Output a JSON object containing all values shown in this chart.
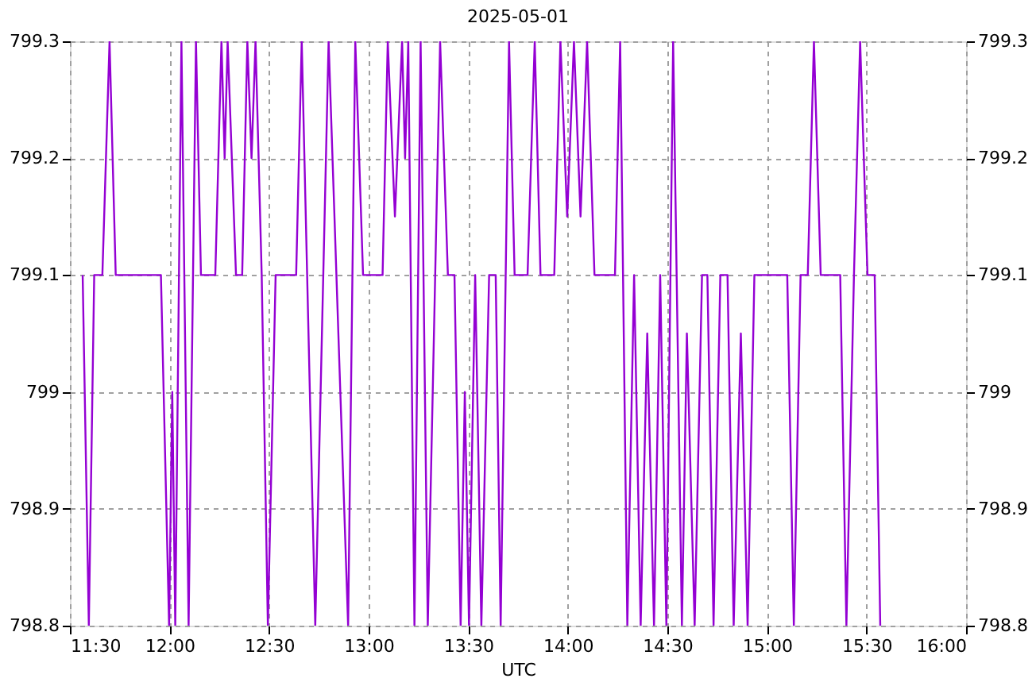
{
  "chart_data": {
    "type": "line",
    "title": "2025-05-01",
    "xlabel": "UTC",
    "xlim": [
      11.5,
      16
    ],
    "xticks": [
      {
        "value": 11.5,
        "label": "11:30"
      },
      {
        "value": 12,
        "label": "12:00"
      },
      {
        "value": 12.5,
        "label": "12:30"
      },
      {
        "value": 13,
        "label": "13:00"
      },
      {
        "value": 13.5,
        "label": "13:30"
      },
      {
        "value": 14,
        "label": "14:00"
      },
      {
        "value": 14.5,
        "label": "14:30"
      },
      {
        "value": 15,
        "label": "15:00"
      },
      {
        "value": 15.5,
        "label": "15:30"
      },
      {
        "value": 16,
        "label": "16:00"
      }
    ],
    "ylim": [
      798.8,
      799.3
    ],
    "yticks": [
      798.8,
      798.9,
      799,
      799.1,
      799.2,
      799.3
    ],
    "y2lim": [
      798.8,
      799.3
    ],
    "y2ticks": [
      798.8,
      798.9,
      799,
      799.1,
      799.2,
      799.3
    ],
    "grid": true,
    "marker": "none",
    "line_style": "solid",
    "series": [
      {
        "color": "#9400d3",
        "x": [
          11.564,
          11.595,
          11.622,
          11.663,
          11.699,
          11.73,
          11.957,
          11.998,
          12.014,
          12.029,
          12.06,
          12.096,
          12.133,
          12.158,
          12.23,
          12.261,
          12.277,
          12.292,
          12.334,
          12.365,
          12.391,
          12.412,
          12.432,
          12.463,
          12.494,
          12.533,
          12.636,
          12.664,
          12.732,
          12.799,
          12.897,
          12.933,
          12.972,
          13.07,
          13.096,
          13.132,
          13.168,
          13.183,
          13.199,
          13.23,
          13.261,
          13.297,
          13.359,
          13.398,
          13.431,
          13.462,
          13.483,
          13.504,
          13.535,
          13.566,
          13.605,
          13.638,
          13.663,
          13.705,
          13.733,
          13.798,
          13.834,
          13.863,
          13.932,
          13.963,
          13.997,
          14.031,
          14.064,
          14.097,
          14.134,
          14.237,
          14.263,
          14.299,
          14.333,
          14.366,
          14.399,
          14.433,
          14.464,
          14.495,
          14.529,
          14.573,
          14.598,
          14.637,
          14.674,
          14.701,
          14.732,
          14.766,
          14.802,
          14.833,
          14.869,
          14.903,
          14.937,
          15.102,
          15.135,
          15.169,
          15.205,
          15.236,
          15.27,
          15.368,
          15.399,
          15.437,
          15.468,
          15.505,
          15.541,
          15.569
        ],
        "values": [
          799.1,
          798.8,
          799.1,
          799.1,
          799.3,
          799.1,
          799.1,
          798.8,
          799.0,
          798.8,
          799.3,
          798.8,
          799.3,
          799.1,
          799.1,
          799.3,
          799.2,
          799.3,
          799.1,
          799.1,
          799.3,
          799.2,
          799.3,
          799.1,
          798.8,
          799.1,
          799.1,
          799.3,
          798.8,
          799.3,
          798.8,
          799.3,
          799.1,
          799.1,
          799.3,
          799.15,
          799.3,
          799.2,
          799.3,
          798.8,
          799.3,
          798.8,
          799.3,
          799.1,
          799.1,
          798.8,
          799.0,
          798.8,
          799.1,
          798.8,
          799.1,
          799.1,
          798.8,
          799.3,
          799.1,
          799.1,
          799.3,
          799.1,
          799.1,
          799.3,
          799.15,
          799.3,
          799.15,
          799.3,
          799.1,
          799.1,
          799.3,
          798.8,
          799.1,
          798.8,
          799.05,
          798.8,
          799.1,
          798.8,
          799.3,
          798.8,
          799.05,
          798.8,
          799.1,
          799.1,
          798.8,
          799.1,
          799.1,
          798.8,
          799.05,
          798.8,
          799.1,
          799.1,
          798.8,
          799.1,
          799.1,
          799.3,
          799.1,
          799.1,
          798.8,
          799.1,
          799.3,
          799.1,
          799.1,
          798.8
        ]
      }
    ]
  }
}
